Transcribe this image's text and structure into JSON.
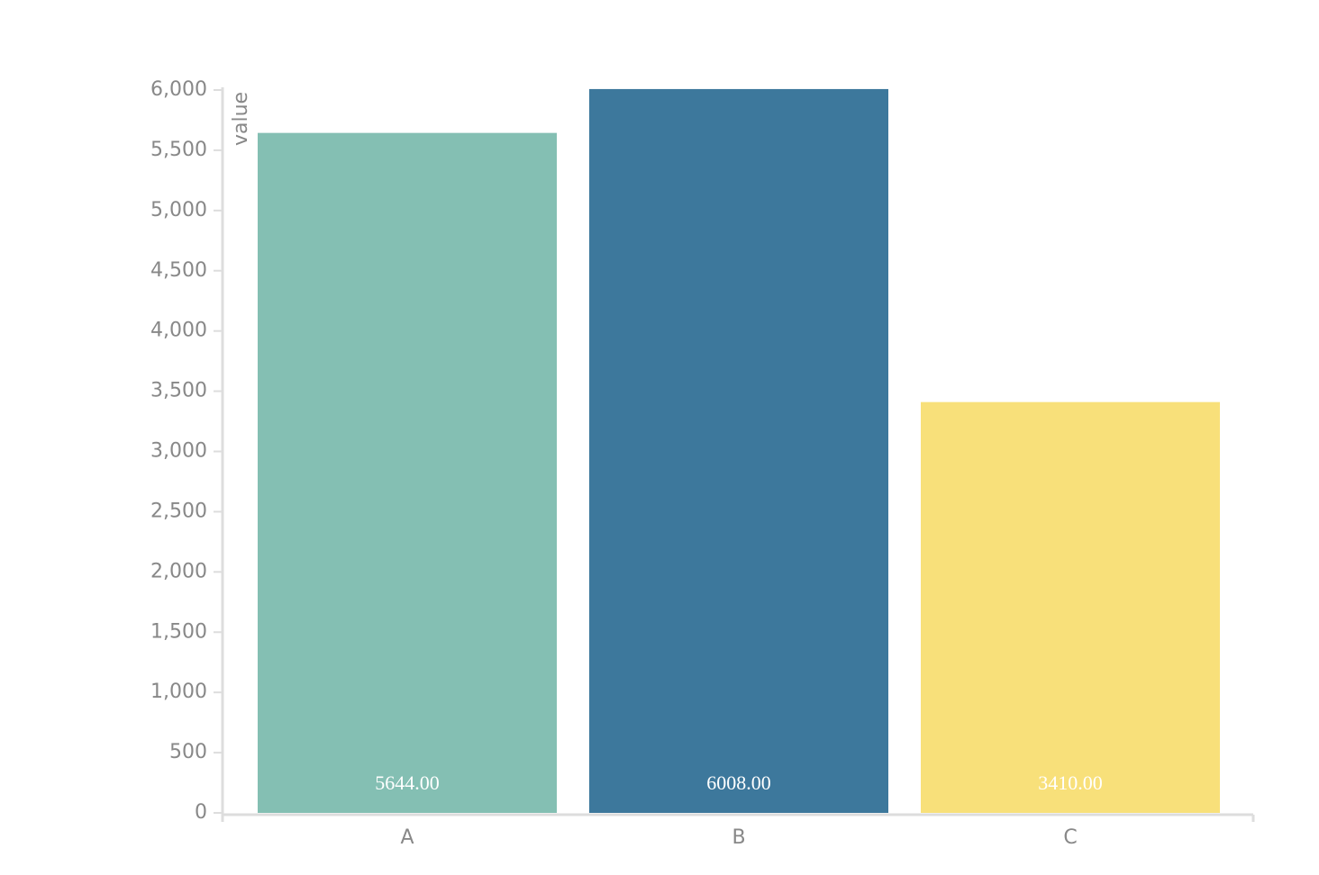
{
  "chart_data": {
    "type": "bar",
    "y_label": "value",
    "categories": [
      "A",
      "B",
      "C"
    ],
    "values": [
      5644,
      6008,
      3410
    ],
    "value_labels": [
      "5644.00",
      "6008.00",
      "3410.00"
    ],
    "colors": [
      "#84bfb3",
      "#3d789c",
      "#f8e07a"
    ],
    "ylim": [
      0,
      6000
    ],
    "yticks": [
      0,
      500,
      {
        "value": 1000,
        "label": "1,000"
      },
      {
        "value": 1500,
        "label": "1,500"
      },
      {
        "value": 2000,
        "label": "2,000"
      },
      {
        "value": 2500,
        "label": "2,500"
      },
      {
        "value": 3000,
        "label": "3,000"
      },
      {
        "value": 3500,
        "label": "3,500"
      },
      {
        "value": 4000,
        "label": "4,000"
      },
      {
        "value": 4500,
        "label": "4,500"
      },
      {
        "value": 5000,
        "label": "5,000"
      },
      {
        "value": 5500,
        "label": "5,500"
      },
      {
        "value": 6000,
        "label": "6,000"
      }
    ]
  }
}
